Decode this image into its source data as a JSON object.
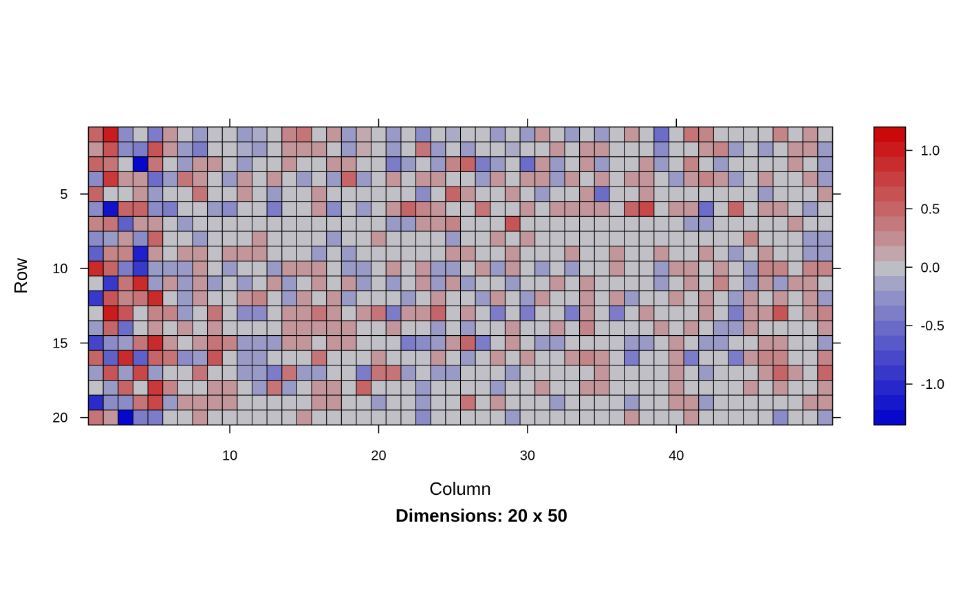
{
  "chart_data": {
    "type": "heatmap",
    "title": "",
    "xlabel": "Column",
    "ylabel": "Row",
    "subtitle": "Dimensions: 20 x 50",
    "nrow": 20,
    "ncol": 50,
    "x_ticks": [
      "10",
      "20",
      "30",
      "40"
    ],
    "y_ticks": [
      "5",
      "10",
      "15",
      "20"
    ],
    "colorbar": {
      "min": -1.35,
      "max": 1.2,
      "low_color": "#0000cc",
      "mid_color": "#c0c0c6",
      "high_color": "#cc0000",
      "ticks": [
        "1.0",
        "0.5",
        "0.0",
        "-0.5",
        "-1.0"
      ]
    },
    "grid": true,
    "values": [
      [
        0.5,
        1.0,
        -0.3,
        0.0,
        -0.4,
        0.2,
        0.0,
        -0.2,
        0.0,
        0.0,
        -0.2,
        -0.1,
        0.0,
        0.3,
        0.4,
        0.0,
        0.2,
        -0.2,
        0.1,
        0.0,
        -0.2,
        0.0,
        -0.3,
        0.0,
        -0.1,
        0.0,
        0.0,
        -0.2,
        0.0,
        -0.2,
        0.2,
        0.0,
        -0.2,
        0.0,
        -0.2,
        0.0,
        0.2,
        0.0,
        -0.5,
        0.0,
        0.4,
        0.3,
        0.0,
        0.0,
        0.0,
        0.0,
        0.3,
        0.0,
        0.2,
        0.0
      ],
      [
        0.2,
        0.6,
        -0.3,
        -0.4,
        0.6,
        0.2,
        -0.2,
        -0.4,
        0.0,
        0.0,
        -0.1,
        -0.2,
        0.0,
        0.2,
        0.2,
        0.2,
        0.0,
        -0.2,
        0.1,
        0.0,
        -0.2,
        0.0,
        0.4,
        -0.2,
        0.0,
        -0.2,
        0.0,
        0.0,
        -0.1,
        0.0,
        0.0,
        0.2,
        0.0,
        0.2,
        0.2,
        0.0,
        0.0,
        0.0,
        -0.3,
        0.0,
        0.0,
        0.2,
        0.3,
        -0.2,
        0.0,
        -0.2,
        0.0,
        0.2,
        0.2,
        -0.2
      ],
      [
        0.5,
        0.4,
        0.0,
        -1.3,
        0.4,
        0.0,
        -0.2,
        0.2,
        0.2,
        0.0,
        -0.2,
        0.0,
        0.0,
        0.2,
        0.0,
        0.0,
        0.2,
        0.2,
        0.0,
        0.0,
        -0.4,
        -0.2,
        0.0,
        -0.2,
        0.3,
        0.5,
        -0.4,
        -0.2,
        0.0,
        -0.5,
        0.2,
        -0.2,
        0.0,
        0.2,
        -0.2,
        0.0,
        0.0,
        0.2,
        -0.2,
        0.0,
        0.3,
        0.0,
        -0.2,
        0.0,
        0.0,
        0.0,
        0.0,
        0.2,
        0.0,
        -0.2
      ],
      [
        -0.3,
        0.8,
        0.2,
        0.2,
        -0.5,
        -0.2,
        0.4,
        0.2,
        0.0,
        -0.2,
        0.2,
        0.0,
        0.2,
        0.0,
        -0.2,
        0.0,
        -0.2,
        0.5,
        -0.2,
        0.0,
        0.2,
        0.0,
        0.2,
        0.2,
        0.0,
        0.0,
        -0.2,
        0.2,
        0.0,
        0.2,
        0.2,
        -0.2,
        0.2,
        0.0,
        0.2,
        0.0,
        0.2,
        0.2,
        0.0,
        -0.2,
        0.2,
        0.3,
        0.2,
        -0.2,
        0.0,
        0.2,
        0.0,
        0.0,
        0.2,
        -0.2
      ],
      [
        0.5,
        0.0,
        0.0,
        0.2,
        -0.2,
        0.0,
        0.0,
        0.4,
        0.0,
        0.0,
        0.2,
        0.0,
        -0.2,
        0.0,
        0.0,
        0.2,
        0.0,
        0.0,
        0.0,
        0.0,
        0.0,
        0.0,
        -0.3,
        0.0,
        0.5,
        0.2,
        0.0,
        0.0,
        0.2,
        0.0,
        -0.2,
        0.0,
        0.0,
        0.2,
        -0.5,
        0.0,
        0.0,
        0.2,
        0.0,
        0.0,
        0.0,
        0.0,
        0.0,
        0.0,
        0.0,
        -0.2,
        0.0,
        0.0,
        0.0,
        0.2
      ],
      [
        -0.3,
        -1.2,
        0.5,
        0.5,
        -0.3,
        -0.4,
        0.0,
        0.0,
        -0.2,
        -0.3,
        0.0,
        0.0,
        -0.4,
        0.0,
        0.0,
        0.2,
        -0.3,
        0.0,
        -0.2,
        0.0,
        0.2,
        0.5,
        0.3,
        0.2,
        0.0,
        0.0,
        0.4,
        0.0,
        0.0,
        0.2,
        0.0,
        0.2,
        0.2,
        0.2,
        0.2,
        0.0,
        0.5,
        0.7,
        0.0,
        0.2,
        0.2,
        -0.5,
        0.0,
        0.5,
        0.0,
        0.2,
        0.2,
        0.0,
        -0.2,
        0.0
      ],
      [
        0.3,
        0.4,
        -0.6,
        0.2,
        0.2,
        0.0,
        -0.2,
        0.0,
        0.0,
        0.0,
        0.0,
        0.0,
        0.0,
        0.0,
        0.0,
        0.0,
        0.0,
        0.0,
        0.0,
        0.0,
        -0.2,
        -0.2,
        0.2,
        0.2,
        0.3,
        0.0,
        0.0,
        0.0,
        0.6,
        0.0,
        0.0,
        0.0,
        0.0,
        0.0,
        0.0,
        0.0,
        0.0,
        0.0,
        0.0,
        0.0,
        -0.2,
        -0.2,
        0.0,
        0.0,
        0.0,
        0.0,
        0.0,
        0.2,
        0.0,
        0.0
      ],
      [
        -0.3,
        -0.2,
        0.2,
        -0.3,
        0.5,
        0.0,
        0.0,
        -0.2,
        0.0,
        0.0,
        0.0,
        0.2,
        0.0,
        0.0,
        0.0,
        0.0,
        -0.2,
        0.0,
        0.0,
        0.2,
        0.0,
        0.0,
        0.0,
        0.0,
        -0.2,
        0.0,
        0.0,
        0.2,
        0.0,
        0.2,
        0.0,
        0.0,
        0.0,
        0.0,
        0.0,
        0.0,
        0.0,
        0.0,
        0.0,
        0.0,
        0.0,
        0.0,
        0.0,
        0.0,
        0.3,
        0.0,
        0.0,
        0.0,
        -0.2,
        -0.2
      ],
      [
        -0.6,
        0.3,
        0.3,
        -1.1,
        0.2,
        0.0,
        0.2,
        0.2,
        0.0,
        0.2,
        0.2,
        0.2,
        0.0,
        0.0,
        0.0,
        -0.2,
        0.0,
        -0.2,
        0.0,
        0.0,
        0.0,
        0.0,
        0.0,
        0.0,
        0.2,
        0.2,
        0.0,
        0.0,
        0.2,
        0.0,
        0.0,
        0.0,
        0.2,
        0.0,
        0.0,
        0.2,
        0.0,
        0.0,
        0.2,
        0.0,
        0.0,
        0.2,
        0.0,
        -0.2,
        0.0,
        0.2,
        0.0,
        0.0,
        -0.2,
        -0.2
      ],
      [
        0.9,
        0.5,
        -0.4,
        -0.9,
        -0.2,
        -0.2,
        -0.2,
        0.2,
        0.0,
        -0.2,
        0.0,
        0.0,
        -0.2,
        0.2,
        0.2,
        0.2,
        0.0,
        -0.2,
        -0.2,
        0.0,
        0.2,
        0.0,
        0.2,
        -0.2,
        -0.2,
        0.0,
        0.2,
        -0.2,
        0.2,
        0.0,
        -0.2,
        0.0,
        -0.2,
        0.0,
        0.0,
        0.2,
        0.0,
        0.0,
        -0.2,
        0.2,
        0.2,
        0.0,
        0.2,
        0.0,
        -0.2,
        0.3,
        0.3,
        0.0,
        0.3,
        0.3
      ],
      [
        0.0,
        -0.9,
        0.4,
        0.9,
        -0.2,
        0.2,
        -0.2,
        0.2,
        -0.2,
        0.0,
        -0.2,
        0.0,
        0.2,
        -0.2,
        0.0,
        0.2,
        0.0,
        0.2,
        -0.2,
        0.0,
        -0.2,
        0.0,
        0.2,
        -0.2,
        0.2,
        -0.2,
        0.0,
        0.0,
        -0.2,
        0.0,
        0.0,
        0.2,
        0.0,
        0.2,
        0.0,
        0.0,
        0.0,
        0.0,
        -0.2,
        0.0,
        0.2,
        0.0,
        0.3,
        0.0,
        -0.2,
        0.2,
        -0.2,
        0.2,
        0.2,
        0.0
      ],
      [
        -0.9,
        0.6,
        0.3,
        0.4,
        0.9,
        0.0,
        -0.2,
        0.2,
        0.0,
        0.0,
        0.2,
        0.3,
        0.0,
        -0.2,
        0.2,
        0.0,
        0.2,
        -0.2,
        0.0,
        0.0,
        0.0,
        -0.2,
        0.0,
        0.2,
        0.0,
        0.0,
        -0.2,
        0.2,
        0.0,
        -0.2,
        0.2,
        0.0,
        0.0,
        0.2,
        0.0,
        0.2,
        -0.2,
        0.0,
        0.0,
        0.2,
        0.0,
        0.2,
        0.0,
        -0.2,
        0.2,
        0.0,
        0.2,
        0.0,
        0.2,
        -0.2
      ],
      [
        0.0,
        1.0,
        0.6,
        0.0,
        0.3,
        0.3,
        -0.2,
        0.0,
        0.4,
        0.0,
        -0.3,
        -0.3,
        0.0,
        0.2,
        0.2,
        0.4,
        0.2,
        0.0,
        0.2,
        0.4,
        -0.4,
        0.2,
        0.2,
        0.5,
        0.0,
        0.2,
        0.0,
        -0.4,
        0.0,
        -0.4,
        0.0,
        0.0,
        -0.4,
        0.2,
        0.0,
        -0.4,
        0.0,
        0.2,
        0.0,
        0.0,
        0.0,
        0.2,
        0.0,
        -0.4,
        0.2,
        0.2,
        0.6,
        0.0,
        0.2,
        0.3
      ],
      [
        -0.2,
        0.5,
        -0.5,
        0.0,
        0.2,
        0.0,
        0.2,
        0.0,
        0.2,
        0.0,
        0.0,
        0.0,
        0.0,
        0.2,
        0.2,
        0.2,
        0.2,
        0.2,
        0.0,
        0.0,
        0.2,
        0.0,
        0.0,
        -0.2,
        0.0,
        -0.2,
        0.0,
        0.0,
        0.2,
        0.0,
        0.0,
        0.2,
        0.0,
        0.3,
        0.0,
        0.0,
        0.0,
        0.0,
        0.2,
        0.0,
        0.2,
        0.0,
        -0.2,
        -0.2,
        0.2,
        0.0,
        0.0,
        0.0,
        0.0,
        0.2
      ],
      [
        -0.8,
        -0.3,
        -0.2,
        0.4,
        0.9,
        0.2,
        0.0,
        0.2,
        0.4,
        0.3,
        -0.2,
        -0.2,
        -0.2,
        0.2,
        0.2,
        0.0,
        0.2,
        0.2,
        0.0,
        0.0,
        0.0,
        -0.4,
        -0.3,
        -0.2,
        0.2,
        0.5,
        -0.4,
        0.0,
        0.2,
        0.0,
        -0.2,
        -0.2,
        0.0,
        0.0,
        0.0,
        0.0,
        -0.2,
        -0.2,
        0.0,
        0.2,
        0.0,
        -0.2,
        -0.2,
        0.0,
        0.0,
        0.2,
        0.2,
        0.0,
        0.0,
        -0.2
      ],
      [
        0.5,
        -0.6,
        0.9,
        -0.6,
        0.5,
        0.4,
        -0.3,
        -0.2,
        0.6,
        0.0,
        -0.2,
        -0.2,
        0.0,
        0.0,
        0.0,
        0.4,
        0.0,
        0.0,
        0.0,
        0.2,
        0.0,
        0.0,
        0.0,
        0.2,
        0.0,
        -0.2,
        0.0,
        0.2,
        0.0,
        0.2,
        0.0,
        0.0,
        0.2,
        0.3,
        0.2,
        0.0,
        -0.4,
        0.0,
        0.0,
        0.2,
        -0.4,
        0.0,
        0.0,
        -0.4,
        0.2,
        0.3,
        0.3,
        0.0,
        0.0,
        0.3
      ],
      [
        -0.2,
        0.6,
        -0.2,
        0.7,
        -0.2,
        0.0,
        0.0,
        0.4,
        0.0,
        0.0,
        -0.2,
        -0.2,
        -0.4,
        0.4,
        -0.2,
        -0.2,
        0.0,
        0.0,
        -0.4,
        0.4,
        0.4,
        -0.2,
        0.0,
        -0.2,
        -0.2,
        0.0,
        0.0,
        0.0,
        -0.2,
        0.0,
        0.0,
        0.0,
        0.0,
        0.0,
        0.2,
        0.0,
        0.0,
        0.0,
        0.0,
        0.2,
        0.0,
        -0.2,
        0.0,
        0.0,
        0.0,
        0.2,
        0.5,
        0.2,
        0.0,
        0.5
      ],
      [
        0.0,
        -0.2,
        0.5,
        0.0,
        0.8,
        0.3,
        0.0,
        0.0,
        0.2,
        0.2,
        0.0,
        -0.2,
        0.4,
        -0.2,
        0.0,
        0.2,
        0.2,
        0.0,
        0.5,
        0.0,
        0.0,
        0.0,
        -0.2,
        0.0,
        0.0,
        0.0,
        0.0,
        -0.2,
        0.0,
        0.0,
        0.2,
        0.0,
        0.0,
        0.2,
        0.2,
        0.0,
        0.0,
        0.0,
        0.0,
        0.2,
        0.0,
        0.0,
        0.0,
        0.0,
        0.2,
        0.0,
        0.2,
        0.0,
        0.0,
        0.2
      ],
      [
        -1.0,
        -0.3,
        -0.3,
        0.4,
        0.7,
        -0.2,
        0.2,
        0.2,
        0.2,
        0.2,
        0.0,
        0.0,
        0.0,
        0.0,
        0.0,
        0.2,
        0.2,
        0.0,
        0.0,
        -0.2,
        0.0,
        0.0,
        -0.2,
        0.0,
        0.0,
        0.4,
        0.0,
        0.2,
        0.0,
        0.0,
        0.0,
        -0.2,
        0.0,
        0.0,
        0.0,
        0.0,
        -0.2,
        0.0,
        0.0,
        0.2,
        0.2,
        -0.2,
        0.0,
        0.0,
        0.0,
        0.0,
        0.0,
        0.0,
        0.2,
        0.2
      ],
      [
        0.4,
        0.2,
        -1.3,
        -0.4,
        -0.4,
        0.0,
        0.0,
        0.2,
        0.0,
        0.0,
        0.0,
        0.0,
        0.0,
        0.0,
        0.2,
        0.0,
        0.0,
        0.0,
        0.0,
        0.0,
        0.0,
        0.0,
        -0.3,
        0.0,
        0.0,
        0.0,
        0.0,
        0.0,
        -0.2,
        0.0,
        0.0,
        0.0,
        0.0,
        0.0,
        0.0,
        0.0,
        0.2,
        0.0,
        0.0,
        0.0,
        0.2,
        0.0,
        0.0,
        0.0,
        0.0,
        0.0,
        -0.3,
        0.0,
        0.0,
        -0.2
      ]
    ]
  }
}
